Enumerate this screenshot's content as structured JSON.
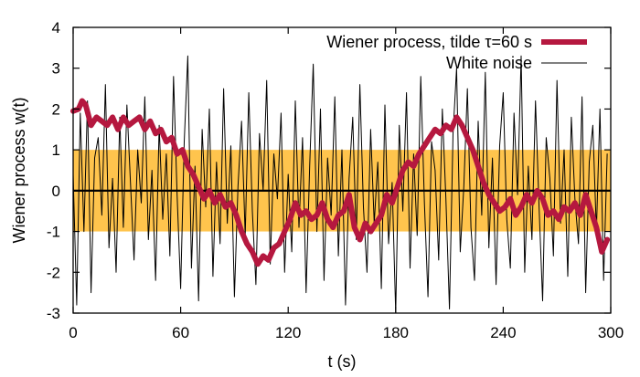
{
  "chart_data": {
    "type": "line",
    "title": "",
    "xlabel": "t (s)",
    "ylabel": "Wiener process w(t)",
    "xlim": [
      0,
      300
    ],
    "ylim": [
      -3,
      4
    ],
    "x_ticks": [
      0,
      60,
      120,
      180,
      240,
      300
    ],
    "y_ticks": [
      -3,
      -2,
      -1,
      0,
      1,
      2,
      3,
      4
    ],
    "x_tick_labels": [
      "0",
      "60",
      "120",
      "180",
      "240",
      "300"
    ],
    "y_tick_labels": [
      "-3",
      "-2",
      "-1",
      "0",
      "1",
      "2",
      "3",
      "4"
    ],
    "band": {
      "from": -1,
      "to": 1,
      "color": "#ffc44d"
    },
    "zero_line": true,
    "legend_position": "top-right",
    "series": [
      {
        "name": "Wiener process, tilde τ=60 s",
        "color": "#b5183f",
        "style": "thick",
        "x": [
          0,
          3,
          5,
          7,
          10,
          13,
          16,
          19,
          22,
          25,
          28,
          31,
          34,
          37,
          40,
          43,
          46,
          49,
          52,
          55,
          58,
          61,
          64,
          67,
          70,
          73,
          76,
          79,
          82,
          85,
          88,
          91,
          94,
          97,
          100,
          103,
          106,
          109,
          112,
          115,
          118,
          121,
          124,
          127,
          130,
          133,
          136,
          139,
          142,
          145,
          148,
          151,
          154,
          157,
          160,
          163,
          166,
          169,
          172,
          175,
          178,
          181,
          184,
          187,
          190,
          193,
          196,
          199,
          202,
          205,
          208,
          211,
          214,
          217,
          220,
          223,
          226,
          229,
          232,
          235,
          238,
          241,
          244,
          247,
          250,
          253,
          256,
          259,
          262,
          265,
          268,
          271,
          274,
          277,
          280,
          283,
          286,
          289,
          292,
          295,
          298
        ],
        "y": [
          1.95,
          2.0,
          2.2,
          2.1,
          1.6,
          1.8,
          1.7,
          1.6,
          1.8,
          1.5,
          1.8,
          1.6,
          1.7,
          1.8,
          1.5,
          1.7,
          1.4,
          1.5,
          1.2,
          1.3,
          0.9,
          1.0,
          0.6,
          0.4,
          0.1,
          -0.2,
          0.0,
          -0.3,
          -0.1,
          -0.4,
          -0.3,
          -0.6,
          -1.0,
          -1.3,
          -1.5,
          -1.8,
          -1.6,
          -1.7,
          -1.4,
          -1.3,
          -1.0,
          -0.7,
          -0.3,
          -0.6,
          -0.5,
          -0.7,
          -0.6,
          -0.3,
          -0.7,
          -0.9,
          -0.6,
          -0.5,
          -0.1,
          -0.9,
          -1.2,
          -0.8,
          -1.0,
          -0.8,
          -0.6,
          -0.1,
          -0.3,
          0.1,
          0.5,
          0.7,
          0.6,
          0.9,
          1.1,
          1.3,
          1.5,
          1.4,
          1.6,
          1.5,
          1.8,
          1.6,
          1.3,
          1.0,
          0.6,
          0.2,
          -0.1,
          -0.3,
          -0.5,
          -0.4,
          -0.2,
          -0.6,
          -0.4,
          -0.1,
          -0.3,
          0.0,
          -0.2,
          -0.6,
          -0.5,
          -0.7,
          -0.4,
          -0.5,
          -0.3,
          -0.6,
          -0.1,
          -0.5,
          -0.9,
          -1.5,
          -1.2
        ]
      },
      {
        "name": "White noise",
        "color": "#000000",
        "style": "thin",
        "x": [
          0,
          2,
          4,
          6,
          8,
          10,
          12,
          14,
          16,
          18,
          20,
          22,
          24,
          26,
          28,
          30,
          32,
          34,
          36,
          38,
          40,
          42,
          44,
          46,
          48,
          50,
          52,
          54,
          56,
          58,
          60,
          62,
          64,
          66,
          68,
          70,
          72,
          74,
          76,
          78,
          80,
          82,
          84,
          86,
          88,
          90,
          92,
          94,
          96,
          98,
          100,
          102,
          104,
          106,
          108,
          110,
          112,
          114,
          116,
          118,
          120,
          122,
          124,
          126,
          128,
          130,
          132,
          134,
          136,
          138,
          140,
          142,
          144,
          146,
          148,
          150,
          152,
          154,
          156,
          158,
          160,
          162,
          164,
          166,
          168,
          170,
          172,
          174,
          176,
          178,
          180,
          182,
          184,
          186,
          188,
          190,
          192,
          194,
          196,
          198,
          200,
          202,
          204,
          206,
          208,
          210,
          212,
          214,
          216,
          218,
          220,
          222,
          224,
          226,
          228,
          230,
          232,
          234,
          236,
          238,
          240,
          242,
          244,
          246,
          248,
          250,
          252,
          254,
          256,
          258,
          260,
          262,
          264,
          266,
          268,
          270,
          272,
          274,
          276,
          278,
          280,
          282,
          284,
          286,
          288,
          290,
          292,
          294,
          296,
          298
        ],
        "y": [
          0.4,
          -2.8,
          1.9,
          -1.0,
          2.2,
          -2.5,
          0.8,
          1.3,
          -0.6,
          2.6,
          -1.4,
          0.3,
          -2.0,
          1.8,
          -0.9,
          2.1,
          0.2,
          -1.7,
          1.0,
          -0.3,
          2.3,
          -1.2,
          0.5,
          -2.2,
          1.6,
          -0.7,
          0.9,
          -1.6,
          2.8,
          -0.1,
          -2.4,
          1.2,
          3.3,
          -1.9,
          0.6,
          -2.7,
          1.5,
          -0.4,
          2.0,
          -2.1,
          0.7,
          -1.3,
          2.5,
          -0.8,
          1.1,
          -2.6,
          0.1,
          1.7,
          -1.1,
          2.4,
          -0.5,
          -2.3,
          1.4,
          0.0,
          2.7,
          -1.8,
          0.9,
          -0.2,
          1.9,
          -2.0,
          0.4,
          -1.5,
          2.2,
          -0.9,
          1.3,
          -2.5,
          0.6,
          3.1,
          -1.0,
          2.0,
          -2.2,
          0.8,
          -0.6,
          2.3,
          -1.6,
          1.0,
          -2.8,
          0.3,
          1.8,
          -1.2,
          2.6,
          -0.4,
          -2.0,
          1.5,
          -0.8,
          0.7,
          -2.4,
          2.1,
          -1.3,
          0.2,
          -3.0,
          1.6,
          -0.5,
          2.4,
          -1.9,
          0.9,
          -1.1,
          2.8,
          -0.3,
          -2.6,
          1.2,
          0.5,
          -1.7,
          2.0,
          -0.2,
          -2.9,
          1.4,
          3.0,
          -1.5,
          0.1,
          2.5,
          -0.9,
          -2.2,
          1.7,
          -0.6,
          2.9,
          -1.4,
          0.8,
          -2.3,
          1.1,
          2.4,
          -0.7,
          -1.9,
          1.9,
          -0.1,
          3.3,
          -2.0,
          0.6,
          -1.2,
          2.2,
          -0.4,
          -2.7,
          1.3,
          0.3,
          -1.6,
          2.7,
          -0.8,
          1.0,
          -2.1,
          1.8,
          -0.2,
          -1.3,
          2.3,
          -2.5,
          0.7,
          1.6,
          -1.0,
          2.0,
          -2.2,
          0.9
        ]
      }
    ]
  }
}
